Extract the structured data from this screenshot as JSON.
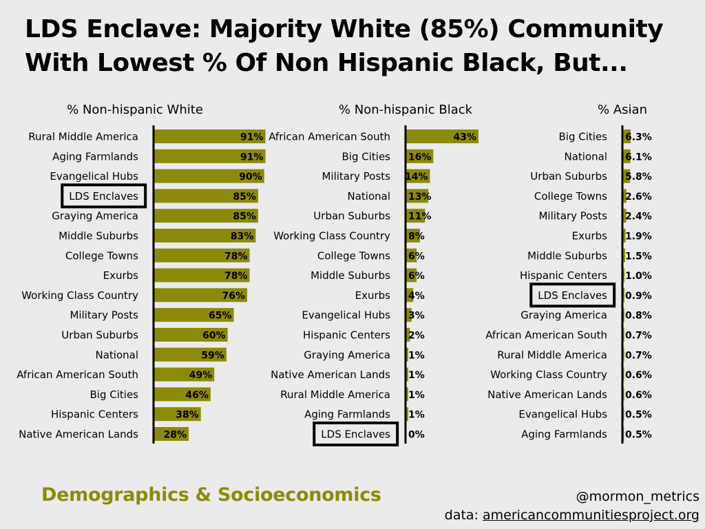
{
  "title": {
    "line1": "LDS Enclave: Majority White (85%) Community",
    "line2": "With Lowest % Of Non Hispanic Black, But..."
  },
  "colors": {
    "bar": "#8c8a0a",
    "background": "#ebebeb",
    "highlight_border": "#000000",
    "footer_accent": "#8c8a0a"
  },
  "footer": {
    "section": "Demographics & Socioeconomics",
    "handle": "@mormon_metrics",
    "source_prefix": "data: ",
    "source_link": "americancommunitiesproject.org"
  },
  "chart_data": [
    {
      "type": "bar",
      "orientation": "horizontal",
      "title": "% Non-hispanic White",
      "highlight": "LDS Enclaves",
      "xlim": [
        0,
        100
      ],
      "categories": [
        "Rural Middle America",
        "Aging Farmlands",
        "Evangelical Hubs",
        "LDS Enclaves",
        "Graying America",
        "Middle Suburbs",
        "College Towns",
        "Exurbs",
        "Working Class Country",
        "Military Posts",
        "Urban Suburbs",
        "National",
        "African American South",
        "Big Cities",
        "Hispanic Centers",
        "Native American Lands"
      ],
      "values": [
        91,
        91,
        90,
        85,
        85,
        83,
        78,
        78,
        76,
        65,
        60,
        59,
        49,
        46,
        38,
        28
      ],
      "labels": [
        "91%",
        "91%",
        "90%",
        "85%",
        "85%",
        "83%",
        "78%",
        "78%",
        "76%",
        "65%",
        "60%",
        "59%",
        "49%",
        "46%",
        "38%",
        "28%"
      ]
    },
    {
      "type": "bar",
      "orientation": "horizontal",
      "title": "% Non-hispanic Black",
      "highlight": "LDS Enclaves",
      "xlim": [
        0,
        100
      ],
      "categories": [
        "African American South",
        "Big Cities",
        "Military Posts",
        "National",
        "Urban Suburbs",
        "Working Class Country",
        "College Towns",
        "Middle Suburbs",
        "Exurbs",
        "Evangelical Hubs",
        "Hispanic Centers",
        "Graying America",
        "Native American Lands",
        "Rural Middle America",
        "Aging Farmlands",
        "LDS Enclaves"
      ],
      "values": [
        43,
        16,
        14,
        13,
        11,
        8,
        6,
        6,
        4,
        3,
        2,
        1,
        1,
        1,
        1,
        0
      ],
      "labels": [
        "43%",
        "16%",
        "14%",
        "13%",
        "11%",
        "8%",
        "6%",
        "6%",
        "4%",
        "3%",
        "2%",
        "1%",
        "1%",
        "1%",
        "1%",
        "0%"
      ]
    },
    {
      "type": "bar",
      "orientation": "horizontal",
      "title": "% Asian",
      "highlight": "LDS Enclaves",
      "xlim": [
        0,
        100
      ],
      "categories": [
        "Big Cities",
        "National",
        "Urban Suburbs",
        "College Towns",
        "Military Posts",
        "Exurbs",
        "Middle Suburbs",
        "Hispanic Centers",
        "LDS Enclaves",
        "Graying America",
        "African American South",
        "Rural Middle America",
        "Working Class Country",
        "Native American Lands",
        "Evangelical Hubs",
        "Aging Farmlands"
      ],
      "values": [
        6.3,
        6.1,
        5.8,
        2.6,
        2.4,
        1.9,
        1.5,
        1.0,
        0.9,
        0.8,
        0.7,
        0.7,
        0.6,
        0.6,
        0.5,
        0.5
      ],
      "labels": [
        "6.3%",
        "6.1%",
        "5.8%",
        "2.6%",
        "2.4%",
        "1.9%",
        "1.5%",
        "1.0%",
        "0.9%",
        "0.8%",
        "0.7%",
        "0.7%",
        "0.6%",
        "0.6%",
        "0.5%",
        "0.5%"
      ]
    }
  ]
}
